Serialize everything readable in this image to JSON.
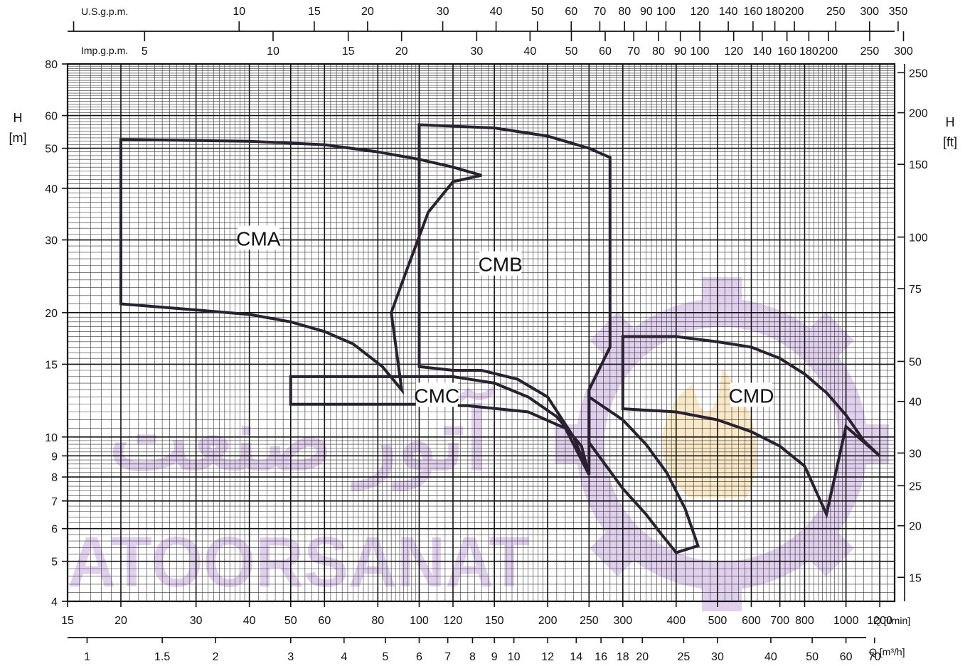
{
  "chart_data": {
    "type": "area",
    "title": "",
    "grid": true,
    "x_scale": "log",
    "y_scale": "log",
    "xlim_lpm": [
      15,
      1300
    ],
    "ylim_m": [
      4,
      80
    ],
    "axes": {
      "flow_lpm": {
        "unit_label": "Q [l/min]",
        "ticks": [
          15,
          20,
          30,
          40,
          50,
          60,
          80,
          100,
          120,
          150,
          200,
          250,
          300,
          400,
          500,
          600,
          700,
          800,
          1000,
          1200
        ]
      },
      "flow_m3h": {
        "unit_label": "Q [m³/h]",
        "ticks": [
          "1",
          "1.5",
          "2",
          "3",
          "4",
          "5",
          "6",
          "7",
          "8",
          "9",
          "10",
          "12",
          "14",
          "16",
          "18",
          "20",
          "25",
          "30",
          "40",
          "50",
          "60",
          "70"
        ]
      },
      "flow_usgpm": {
        "unit_label": "U.S.g.p.m.",
        "ticks": [
          "10",
          "15",
          "20",
          "30",
          "40",
          "50",
          "60",
          "70",
          "80",
          "90",
          "100",
          "120",
          "140",
          "160",
          "180",
          "200",
          "250",
          "300",
          "350"
        ]
      },
      "flow_impgpm": {
        "unit_label": "Imp.g.p.m.",
        "ticks": [
          "5",
          "10",
          "15",
          "20",
          "30",
          "40",
          "50",
          "60",
          "70",
          "80",
          "90",
          "100",
          "120",
          "140",
          "160",
          "180",
          "200",
          "250",
          "300"
        ]
      },
      "head_m": {
        "label_name": "H",
        "label_unit": "[m]",
        "ticks": [
          4,
          5,
          6,
          7,
          8,
          9,
          10,
          15,
          20,
          30,
          40,
          50,
          60,
          80
        ]
      },
      "head_ft": {
        "label_name": "H",
        "label_unit": "[ft]",
        "ticks": [
          15,
          20,
          25,
          30,
          40,
          50,
          75,
          100,
          150,
          200,
          250
        ]
      }
    },
    "regions": [
      {
        "name": "CMA",
        "label_at": [
          42,
          30
        ],
        "points": [
          [
            20,
            52.5
          ],
          [
            40,
            52
          ],
          [
            60,
            51
          ],
          [
            80,
            49
          ],
          [
            100,
            47
          ],
          [
            120,
            45
          ],
          [
            140,
            43
          ],
          [
            120,
            41.5
          ],
          [
            105,
            35
          ],
          [
            93,
            25
          ],
          [
            86,
            20
          ],
          [
            91,
            13
          ],
          [
            82,
            14.8
          ],
          [
            70,
            16.8
          ],
          [
            60,
            18
          ],
          [
            50,
            19
          ],
          [
            40,
            19.8
          ],
          [
            30,
            20.3
          ],
          [
            20,
            21
          ]
        ]
      },
      {
        "name": "CMB",
        "label_at": [
          155,
          26
        ],
        "points": [
          [
            100,
            57
          ],
          [
            150,
            56
          ],
          [
            200,
            53.5
          ],
          [
            250,
            50
          ],
          [
            280,
            47.5
          ],
          [
            280,
            16.5
          ],
          [
            250,
            13
          ],
          [
            250,
            8.1
          ],
          [
            230,
            10
          ],
          [
            200,
            12.5
          ],
          [
            170,
            13.8
          ],
          [
            140,
            14.5
          ],
          [
            120,
            14.5
          ],
          [
            100,
            14.8
          ],
          [
            100,
            57
          ]
        ]
      },
      {
        "name": "CMC",
        "label_at": [
          110,
          12.5
        ],
        "points": [
          [
            50,
            14
          ],
          [
            120,
            14
          ],
          [
            150,
            13.5
          ],
          [
            180,
            12.5
          ],
          [
            210,
            11.2
          ],
          [
            240,
            9.5
          ],
          [
            250,
            8.1
          ],
          [
            220,
            10.5
          ],
          [
            180,
            11.5
          ],
          [
            130,
            11.9
          ],
          [
            100,
            12
          ],
          [
            50,
            12
          ],
          [
            50,
            14
          ]
        ]
      },
      {
        "name": "CMD",
        "label_at": [
          600,
          12.5
        ],
        "points": [
          [
            300,
            17.5
          ],
          [
            400,
            17.5
          ],
          [
            500,
            17
          ],
          [
            600,
            16.5
          ],
          [
            700,
            15.5
          ],
          [
            800,
            14.2
          ],
          [
            900,
            12.8
          ],
          [
            1000,
            11.3
          ],
          [
            1100,
            9.8
          ],
          [
            1200,
            9
          ],
          [
            1000,
            10.6
          ],
          [
            900,
            6.5
          ],
          [
            800,
            8.5
          ],
          [
            700,
            9.5
          ],
          [
            600,
            10.3
          ],
          [
            500,
            11
          ],
          [
            400,
            11.5
          ],
          [
            300,
            11.7
          ],
          [
            300,
            17.5
          ]
        ]
      },
      {
        "name": "",
        "label_at": null,
        "points": [
          [
            250,
            13
          ],
          [
            250,
            9.7
          ],
          [
            300,
            7.5
          ],
          [
            340,
            6.5
          ],
          [
            370,
            5.8
          ],
          [
            400,
            5.25
          ],
          [
            450,
            5.45
          ],
          [
            420,
            6.7
          ],
          [
            380,
            8.2
          ],
          [
            340,
            9.6
          ],
          [
            300,
            11
          ],
          [
            250,
            12.5
          ]
        ]
      }
    ]
  },
  "watermark": {
    "persian": "آتور صنعت",
    "latin": "ATOORSANAT",
    "color": "#c9a8e0"
  }
}
